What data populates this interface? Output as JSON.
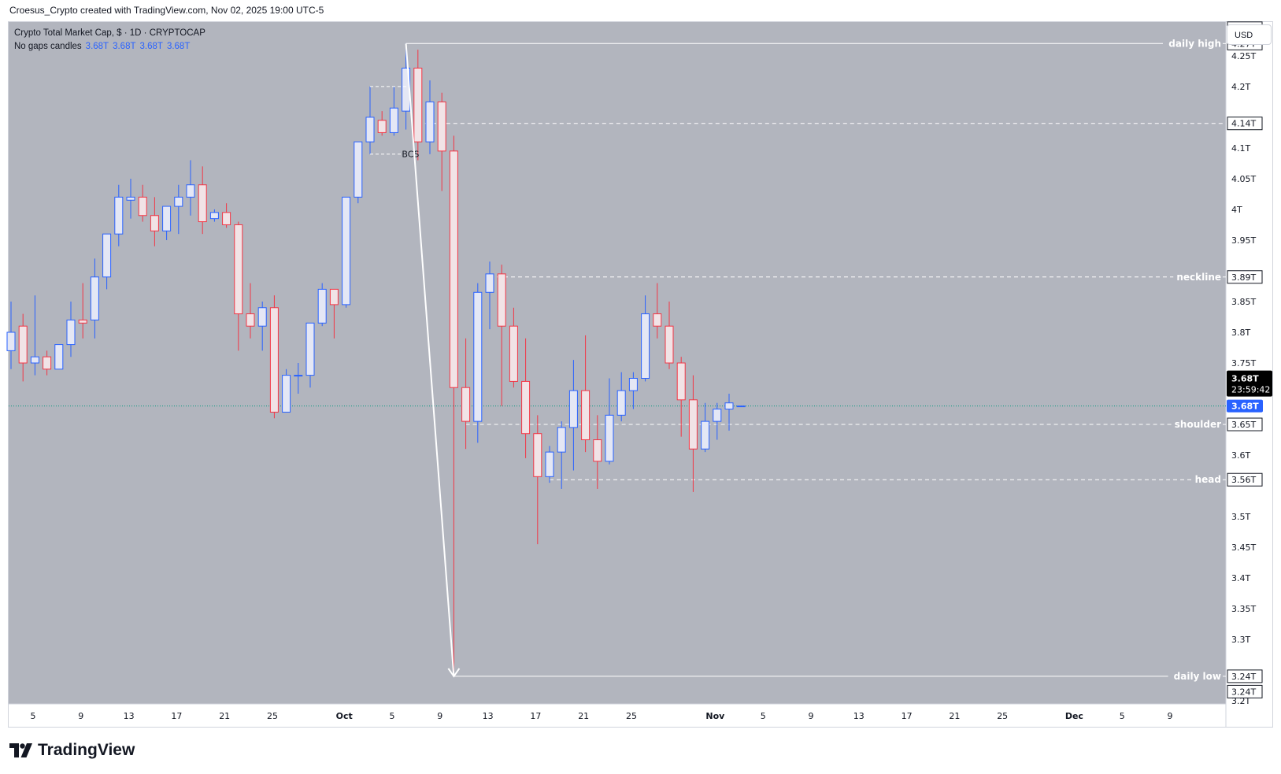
{
  "header": {
    "credit": "Croesus_Crypto created with TradingView.com, Nov 02, 2025 19:00 UTC-5"
  },
  "legend": {
    "title": "Crypto Total Market Cap, $ · 1D · CRYPTOCAP",
    "subtitle": "No gaps candles",
    "ohlc": [
      "3.68T",
      "3.68T",
      "3.68T",
      "3.68T"
    ]
  },
  "currency_button": "USD",
  "brand": "TradingView",
  "colors": {
    "pane_bg": "#b2b5be",
    "up": "#2962ff",
    "down": "#f23645",
    "line": "#ffffff",
    "last_price": "#2962ff",
    "countdown_bg": "#000000"
  },
  "chart_data": {
    "type": "candlestick",
    "title": "Crypto Total Market Cap, $ · 1D · CRYPTOCAP",
    "ylim": [
      3.195,
      4.305
    ],
    "y_ticks": [
      {
        "v": 4.25,
        "label": "4.25T"
      },
      {
        "v": 4.2,
        "label": "4.2T"
      },
      {
        "v": 4.1,
        "label": "4.1T"
      },
      {
        "v": 4.05,
        "label": "4.05T"
      },
      {
        "v": 4.0,
        "label": "4T"
      },
      {
        "v": 3.95,
        "label": "3.95T"
      },
      {
        "v": 3.85,
        "label": "3.85T"
      },
      {
        "v": 3.8,
        "label": "3.8T"
      },
      {
        "v": 3.75,
        "label": "3.75T"
      },
      {
        "v": 3.6,
        "label": "3.6T"
      },
      {
        "v": 3.5,
        "label": "3.5T"
      },
      {
        "v": 3.45,
        "label": "3.45T"
      },
      {
        "v": 3.4,
        "label": "3.4T"
      },
      {
        "v": 3.35,
        "label": "3.35T"
      },
      {
        "v": 3.3,
        "label": "3.3T"
      },
      {
        "v": 3.2,
        "label": "3.2T"
      }
    ],
    "x_ticks": [
      {
        "i": 0,
        "label": "5"
      },
      {
        "i": 4,
        "label": "9"
      },
      {
        "i": 8,
        "label": "13"
      },
      {
        "i": 12,
        "label": "17"
      },
      {
        "i": 16,
        "label": "21"
      },
      {
        "i": 20,
        "label": "25"
      },
      {
        "i": 26,
        "label": "Oct"
      },
      {
        "i": 30,
        "label": "5"
      },
      {
        "i": 34,
        "label": "9"
      },
      {
        "i": 38,
        "label": "13"
      },
      {
        "i": 42,
        "label": "17"
      },
      {
        "i": 46,
        "label": "21"
      },
      {
        "i": 50,
        "label": "25"
      },
      {
        "i": 57,
        "label": "Nov"
      },
      {
        "i": 61,
        "label": "5"
      },
      {
        "i": 65,
        "label": "9"
      },
      {
        "i": 69,
        "label": "13"
      },
      {
        "i": 73,
        "label": "17"
      },
      {
        "i": 77,
        "label": "21"
      },
      {
        "i": 81,
        "label": "25"
      },
      {
        "i": 87,
        "label": "Dec"
      },
      {
        "i": 91,
        "label": "5"
      },
      {
        "i": 95,
        "label": "9"
      }
    ],
    "candles": [
      {
        "o": 3.77,
        "h": 3.85,
        "l": 3.74,
        "c": 3.8
      },
      {
        "o": 3.81,
        "h": 3.83,
        "l": 3.72,
        "c": 3.75
      },
      {
        "o": 3.75,
        "h": 3.86,
        "l": 3.73,
        "c": 3.76
      },
      {
        "o": 3.76,
        "h": 3.77,
        "l": 3.73,
        "c": 3.74
      },
      {
        "o": 3.74,
        "h": 3.78,
        "l": 3.74,
        "c": 3.78
      },
      {
        "o": 3.78,
        "h": 3.85,
        "l": 3.76,
        "c": 3.82
      },
      {
        "o": 3.82,
        "h": 3.88,
        "l": 3.79,
        "c": 3.815
      },
      {
        "o": 3.82,
        "h": 3.92,
        "l": 3.79,
        "c": 3.89
      },
      {
        "o": 3.89,
        "h": 3.96,
        "l": 3.87,
        "c": 3.96
      },
      {
        "o": 3.96,
        "h": 4.04,
        "l": 3.94,
        "c": 4.02
      },
      {
        "o": 4.015,
        "h": 4.05,
        "l": 3.985,
        "c": 4.02
      },
      {
        "o": 4.02,
        "h": 4.04,
        "l": 3.98,
        "c": 3.99
      },
      {
        "o": 3.99,
        "h": 4.02,
        "l": 3.94,
        "c": 3.965
      },
      {
        "o": 3.965,
        "h": 4.0,
        "l": 3.95,
        "c": 4.005
      },
      {
        "o": 4.005,
        "h": 4.04,
        "l": 3.96,
        "c": 4.02
      },
      {
        "o": 4.02,
        "h": 4.08,
        "l": 3.99,
        "c": 4.04
      },
      {
        "o": 4.04,
        "h": 4.07,
        "l": 3.96,
        "c": 3.98
      },
      {
        "o": 3.985,
        "h": 4.0,
        "l": 3.98,
        "c": 3.995
      },
      {
        "o": 3.995,
        "h": 4.01,
        "l": 3.97,
        "c": 3.975
      },
      {
        "o": 3.975,
        "h": 3.98,
        "l": 3.77,
        "c": 3.83
      },
      {
        "o": 3.83,
        "h": 3.88,
        "l": 3.79,
        "c": 3.81
      },
      {
        "o": 3.81,
        "h": 3.85,
        "l": 3.77,
        "c": 3.84
      },
      {
        "o": 3.84,
        "h": 3.86,
        "l": 3.66,
        "c": 3.67
      },
      {
        "o": 3.67,
        "h": 3.74,
        "l": 3.67,
        "c": 3.73
      },
      {
        "o": 3.73,
        "h": 3.75,
        "l": 3.7,
        "c": 3.73
      },
      {
        "o": 3.73,
        "h": 3.81,
        "l": 3.71,
        "c": 3.815
      },
      {
        "o": 3.815,
        "h": 3.88,
        "l": 3.81,
        "c": 3.87
      },
      {
        "o": 3.87,
        "h": 3.87,
        "l": 3.79,
        "c": 3.845
      },
      {
        "o": 3.845,
        "h": 4.02,
        "l": 3.84,
        "c": 4.02
      },
      {
        "o": 4.02,
        "h": 4.11,
        "l": 4.01,
        "c": 4.11
      },
      {
        "o": 4.11,
        "h": 4.2,
        "l": 4.09,
        "c": 4.15
      },
      {
        "o": 4.145,
        "h": 4.16,
        "l": 4.12,
        "c": 4.125
      },
      {
        "o": 4.125,
        "h": 4.2,
        "l": 4.12,
        "c": 4.165
      },
      {
        "o": 4.16,
        "h": 4.27,
        "l": 4.13,
        "c": 4.23
      },
      {
        "o": 4.23,
        "h": 4.26,
        "l": 4.08,
        "c": 4.11
      },
      {
        "o": 4.11,
        "h": 4.21,
        "l": 4.09,
        "c": 4.175
      },
      {
        "o": 4.175,
        "h": 4.19,
        "l": 4.03,
        "c": 4.095
      },
      {
        "o": 4.095,
        "h": 4.12,
        "l": 3.24,
        "c": 3.71
      },
      {
        "o": 3.71,
        "h": 3.79,
        "l": 3.61,
        "c": 3.655
      },
      {
        "o": 3.655,
        "h": 3.88,
        "l": 3.62,
        "c": 3.865
      },
      {
        "o": 3.865,
        "h": 3.915,
        "l": 3.805,
        "c": 3.895
      },
      {
        "o": 3.895,
        "h": 3.91,
        "l": 3.68,
        "c": 3.81
      },
      {
        "o": 3.81,
        "h": 3.84,
        "l": 3.71,
        "c": 3.72
      },
      {
        "o": 3.72,
        "h": 3.79,
        "l": 3.595,
        "c": 3.635
      },
      {
        "o": 3.635,
        "h": 3.665,
        "l": 3.455,
        "c": 3.565
      },
      {
        "o": 3.565,
        "h": 3.615,
        "l": 3.555,
        "c": 3.605
      },
      {
        "o": 3.605,
        "h": 3.655,
        "l": 3.545,
        "c": 3.645
      },
      {
        "o": 3.645,
        "h": 3.755,
        "l": 3.575,
        "c": 3.705
      },
      {
        "o": 3.705,
        "h": 3.795,
        "l": 3.605,
        "c": 3.625
      },
      {
        "o": 3.625,
        "h": 3.665,
        "l": 3.545,
        "c": 3.59
      },
      {
        "o": 3.59,
        "h": 3.725,
        "l": 3.585,
        "c": 3.665
      },
      {
        "o": 3.665,
        "h": 3.735,
        "l": 3.655,
        "c": 3.705
      },
      {
        "o": 3.705,
        "h": 3.735,
        "l": 3.675,
        "c": 3.725
      },
      {
        "o": 3.725,
        "h": 3.86,
        "l": 3.72,
        "c": 3.83
      },
      {
        "o": 3.83,
        "h": 3.88,
        "l": 3.79,
        "c": 3.81
      },
      {
        "o": 3.81,
        "h": 3.85,
        "l": 3.74,
        "c": 3.75
      },
      {
        "o": 3.75,
        "h": 3.76,
        "l": 3.63,
        "c": 3.69
      },
      {
        "o": 3.69,
        "h": 3.73,
        "l": 3.54,
        "c": 3.61
      },
      {
        "o": 3.61,
        "h": 3.685,
        "l": 3.605,
        "c": 3.655
      },
      {
        "o": 3.655,
        "h": 3.685,
        "l": 3.625,
        "c": 3.675
      },
      {
        "o": 3.675,
        "h": 3.7,
        "l": 3.64,
        "c": 3.685
      },
      {
        "o": 3.68,
        "h": 3.68,
        "l": 3.68,
        "c": 3.68
      }
    ],
    "levels": [
      {
        "v": 4.27,
        "label": "daily high",
        "price": "4.27T",
        "style": "solid",
        "from": 33
      },
      {
        "v": 4.14,
        "label": "",
        "price": "4.14T",
        "style": "dashed",
        "from": 34
      },
      {
        "v": 3.89,
        "label": "neckline",
        "price": "3.89T",
        "style": "dashed",
        "from": 40
      },
      {
        "v": 3.65,
        "label": "shoulder",
        "price": "3.65T",
        "style": "dashed",
        "from": 38
      },
      {
        "v": 3.56,
        "label": "head",
        "price": "3.56T",
        "style": "dashed",
        "from": 45
      },
      {
        "v": 3.24,
        "label": "daily low",
        "price": "3.24T",
        "style": "solid",
        "from": 37
      }
    ],
    "extra_price_labels": [
      {
        "v": 4.295,
        "label": "4.27T"
      },
      {
        "v": 3.215,
        "label": "3.24T"
      }
    ],
    "bcs": {
      "label": "BCS",
      "top": 4.2,
      "bottom": 4.09,
      "from": 30,
      "to": 33
    },
    "arrow": {
      "from_i": 33,
      "from_v": 4.27,
      "to_i": 37,
      "to_v": 3.24
    },
    "last_price": {
      "v": 3.68,
      "label": "3.68T",
      "countdown_price": "3.68T",
      "countdown": "23:59:42"
    }
  }
}
